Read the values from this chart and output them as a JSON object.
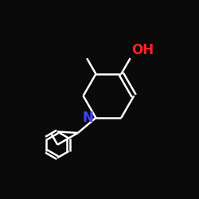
{
  "background": "#0a0a0a",
  "bond_color": "#ffffff",
  "bond_width": 1.8,
  "N_color": "#4444ff",
  "O_color": "#ff2222",
  "label_color": "#ffffff",
  "font_size": 12,
  "OH_font_size": 12,
  "N_font_size": 12
}
